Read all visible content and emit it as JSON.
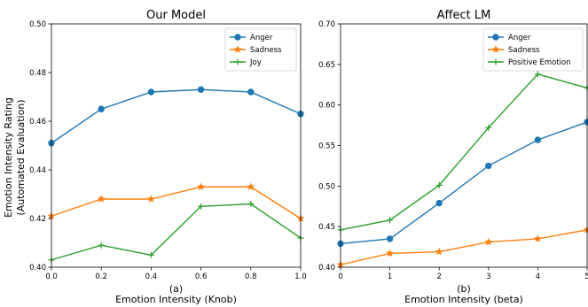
{
  "figure": {
    "shared_ylabel_line1": "Emotion Intensity Rating",
    "shared_ylabel_line2": "(Automated Evaluation)"
  },
  "chart_data": [
    {
      "type": "line",
      "title": "Our Model",
      "subcaption": "(a)",
      "xlabel": "Emotion Intensity (Knob)",
      "x": [
        0.0,
        0.2,
        0.4,
        0.6,
        0.8,
        1.0
      ],
      "xlim": [
        0.0,
        1.0
      ],
      "ylim": [
        0.4,
        0.5
      ],
      "xticks": [
        "0.0",
        "0.2",
        "0.4",
        "0.6",
        "0.8",
        "1.0"
      ],
      "yticks": [
        "0.40",
        "0.42",
        "0.44",
        "0.46",
        "0.48",
        "0.50"
      ],
      "legend_position": "top-right",
      "series": [
        {
          "name": "Anger",
          "color": "#1f77b4",
          "marker": "circle",
          "values": [
            0.451,
            0.465,
            0.472,
            0.473,
            0.472,
            0.463
          ]
        },
        {
          "name": "Sadness",
          "color": "#ff7f0e",
          "marker": "star",
          "values": [
            0.421,
            0.428,
            0.428,
            0.433,
            0.433,
            0.42
          ]
        },
        {
          "name": "Joy",
          "color": "#2ca02c",
          "marker": "plus",
          "values": [
            0.403,
            0.409,
            0.405,
            0.425,
            0.426,
            0.412
          ]
        }
      ]
    },
    {
      "type": "line",
      "title": "Affect LM",
      "subcaption": "(b)",
      "xlabel": "Emotion Intensity (beta)",
      "x": [
        0,
        1,
        2,
        3,
        4,
        5
      ],
      "xlim": [
        0,
        5
      ],
      "ylim": [
        0.4,
        0.7
      ],
      "xticks": [
        "0",
        "1",
        "2",
        "3",
        "4",
        "5"
      ],
      "yticks": [
        "0.40",
        "0.45",
        "0.50",
        "0.55",
        "0.60",
        "0.65",
        "0.70"
      ],
      "legend_position": "top-right",
      "series": [
        {
          "name": "Anger",
          "color": "#1f77b4",
          "marker": "circle",
          "values": [
            0.429,
            0.435,
            0.479,
            0.525,
            0.557,
            0.579
          ]
        },
        {
          "name": "Sadness",
          "color": "#ff7f0e",
          "marker": "star",
          "values": [
            0.403,
            0.417,
            0.419,
            0.431,
            0.435,
            0.446
          ]
        },
        {
          "name": "Positive Emotion",
          "color": "#2ca02c",
          "marker": "plus",
          "values": [
            0.446,
            0.458,
            0.501,
            0.572,
            0.638,
            0.621
          ]
        }
      ]
    }
  ]
}
